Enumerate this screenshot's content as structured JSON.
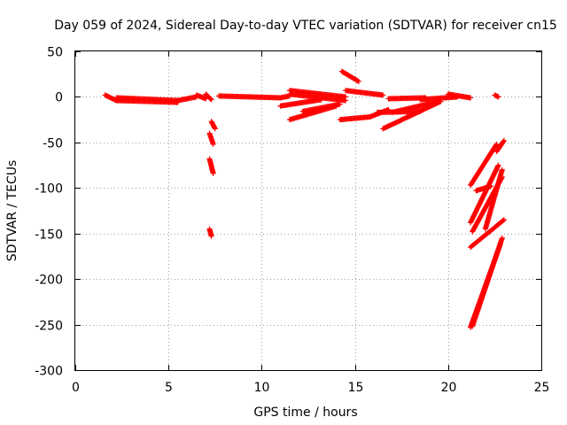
{
  "chart_data": {
    "type": "scatter",
    "title": "Day 059 of 2024, Sidereal Day-to-day VTEC variation (SDTVAR) for receiver cn15",
    "xlabel": "GPS time / hours",
    "ylabel": "SDTVAR / TECUs",
    "xlim": [
      0,
      25
    ],
    "ylim": [
      -300,
      50
    ],
    "xticks": [
      0,
      5,
      10,
      15,
      20,
      25
    ],
    "yticks": [
      -300,
      -250,
      -200,
      -150,
      -100,
      -50,
      0,
      50
    ],
    "grid": true,
    "marker": "+",
    "color": "#ff0000",
    "segments": [
      {
        "x": [
          1.6,
          2.2
        ],
        "y": [
          2,
          -4
        ]
      },
      {
        "x": [
          2.2,
          5.5
        ],
        "y": [
          -1,
          -4
        ]
      },
      {
        "x": [
          2.2,
          5.5
        ],
        "y": [
          -4,
          -6
        ]
      },
      {
        "x": [
          5.5,
          6.5
        ],
        "y": [
          -4,
          0
        ]
      },
      {
        "x": [
          6.5,
          7.0
        ],
        "y": [
          2,
          -2
        ]
      },
      {
        "x": [
          7.0,
          7.3
        ],
        "y": [
          3,
          -3
        ]
      },
      {
        "x": [
          7.3,
          7.5
        ],
        "y": [
          -27,
          -35
        ]
      },
      {
        "x": [
          7.2,
          7.4
        ],
        "y": [
          -40,
          -52
        ]
      },
      {
        "x": [
          7.2,
          7.4
        ],
        "y": [
          -68,
          -84
        ]
      },
      {
        "x": [
          7.2,
          7.3
        ],
        "y": [
          -145,
          -153
        ]
      },
      {
        "x": [
          7.7,
          11.0
        ],
        "y": [
          1,
          -1
        ]
      },
      {
        "x": [
          11.0,
          11.5
        ],
        "y": [
          -1,
          1
        ]
      },
      {
        "x": [
          11.5,
          14.5
        ],
        "y": [
          7,
          0
        ]
      },
      {
        "x": [
          11.5,
          14.5
        ],
        "y": [
          3,
          -4
        ]
      },
      {
        "x": [
          11.0,
          13.2
        ],
        "y": [
          -10,
          -3
        ]
      },
      {
        "x": [
          11.5,
          14.0
        ],
        "y": [
          -25,
          -10
        ]
      },
      {
        "x": [
          12.2,
          14.2
        ],
        "y": [
          -16,
          -8
        ]
      },
      {
        "x": [
          14.3,
          15.2
        ],
        "y": [
          28,
          17
        ]
      },
      {
        "x": [
          14.5,
          16.5
        ],
        "y": [
          7,
          2
        ]
      },
      {
        "x": [
          14.2,
          15.8
        ],
        "y": [
          -25,
          -22
        ]
      },
      {
        "x": [
          15.8,
          16.8
        ],
        "y": [
          -22,
          -14
        ]
      },
      {
        "x": [
          16.2,
          18.5
        ],
        "y": [
          -17,
          -16
        ]
      },
      {
        "x": [
          16.5,
          19.6
        ],
        "y": [
          -35,
          -5
        ]
      },
      {
        "x": [
          16.8,
          18.8
        ],
        "y": [
          -2,
          -1
        ]
      },
      {
        "x": [
          17.0,
          19.5
        ],
        "y": [
          -17,
          -5
        ]
      },
      {
        "x": [
          18.5,
          20.5
        ],
        "y": [
          -3,
          0
        ]
      },
      {
        "x": [
          20.0,
          21.2
        ],
        "y": [
          3,
          -1
        ]
      },
      {
        "x": [
          22.5,
          22.7
        ],
        "y": [
          2,
          0
        ]
      },
      {
        "x": [
          21.2,
          22.6
        ],
        "y": [
          -97,
          -52
        ]
      },
      {
        "x": [
          21.2,
          22.7
        ],
        "y": [
          -138,
          -75
        ]
      },
      {
        "x": [
          21.3,
          22.9
        ],
        "y": [
          -148,
          -88
        ]
      },
      {
        "x": [
          21.5,
          22.3
        ],
        "y": [
          -103,
          -98
        ]
      },
      {
        "x": [
          21.2,
          22.8
        ],
        "y": [
          -253,
          -162
        ]
      },
      {
        "x": [
          21.3,
          22.9
        ],
        "y": [
          -252,
          -155
        ]
      },
      {
        "x": [
          21.2,
          23.0
        ],
        "y": [
          -165,
          -135
        ]
      },
      {
        "x": [
          22.0,
          22.9
        ],
        "y": [
          -145,
          -80
        ]
      },
      {
        "x": [
          22.6,
          23.0
        ],
        "y": [
          -60,
          -48
        ]
      }
    ]
  }
}
